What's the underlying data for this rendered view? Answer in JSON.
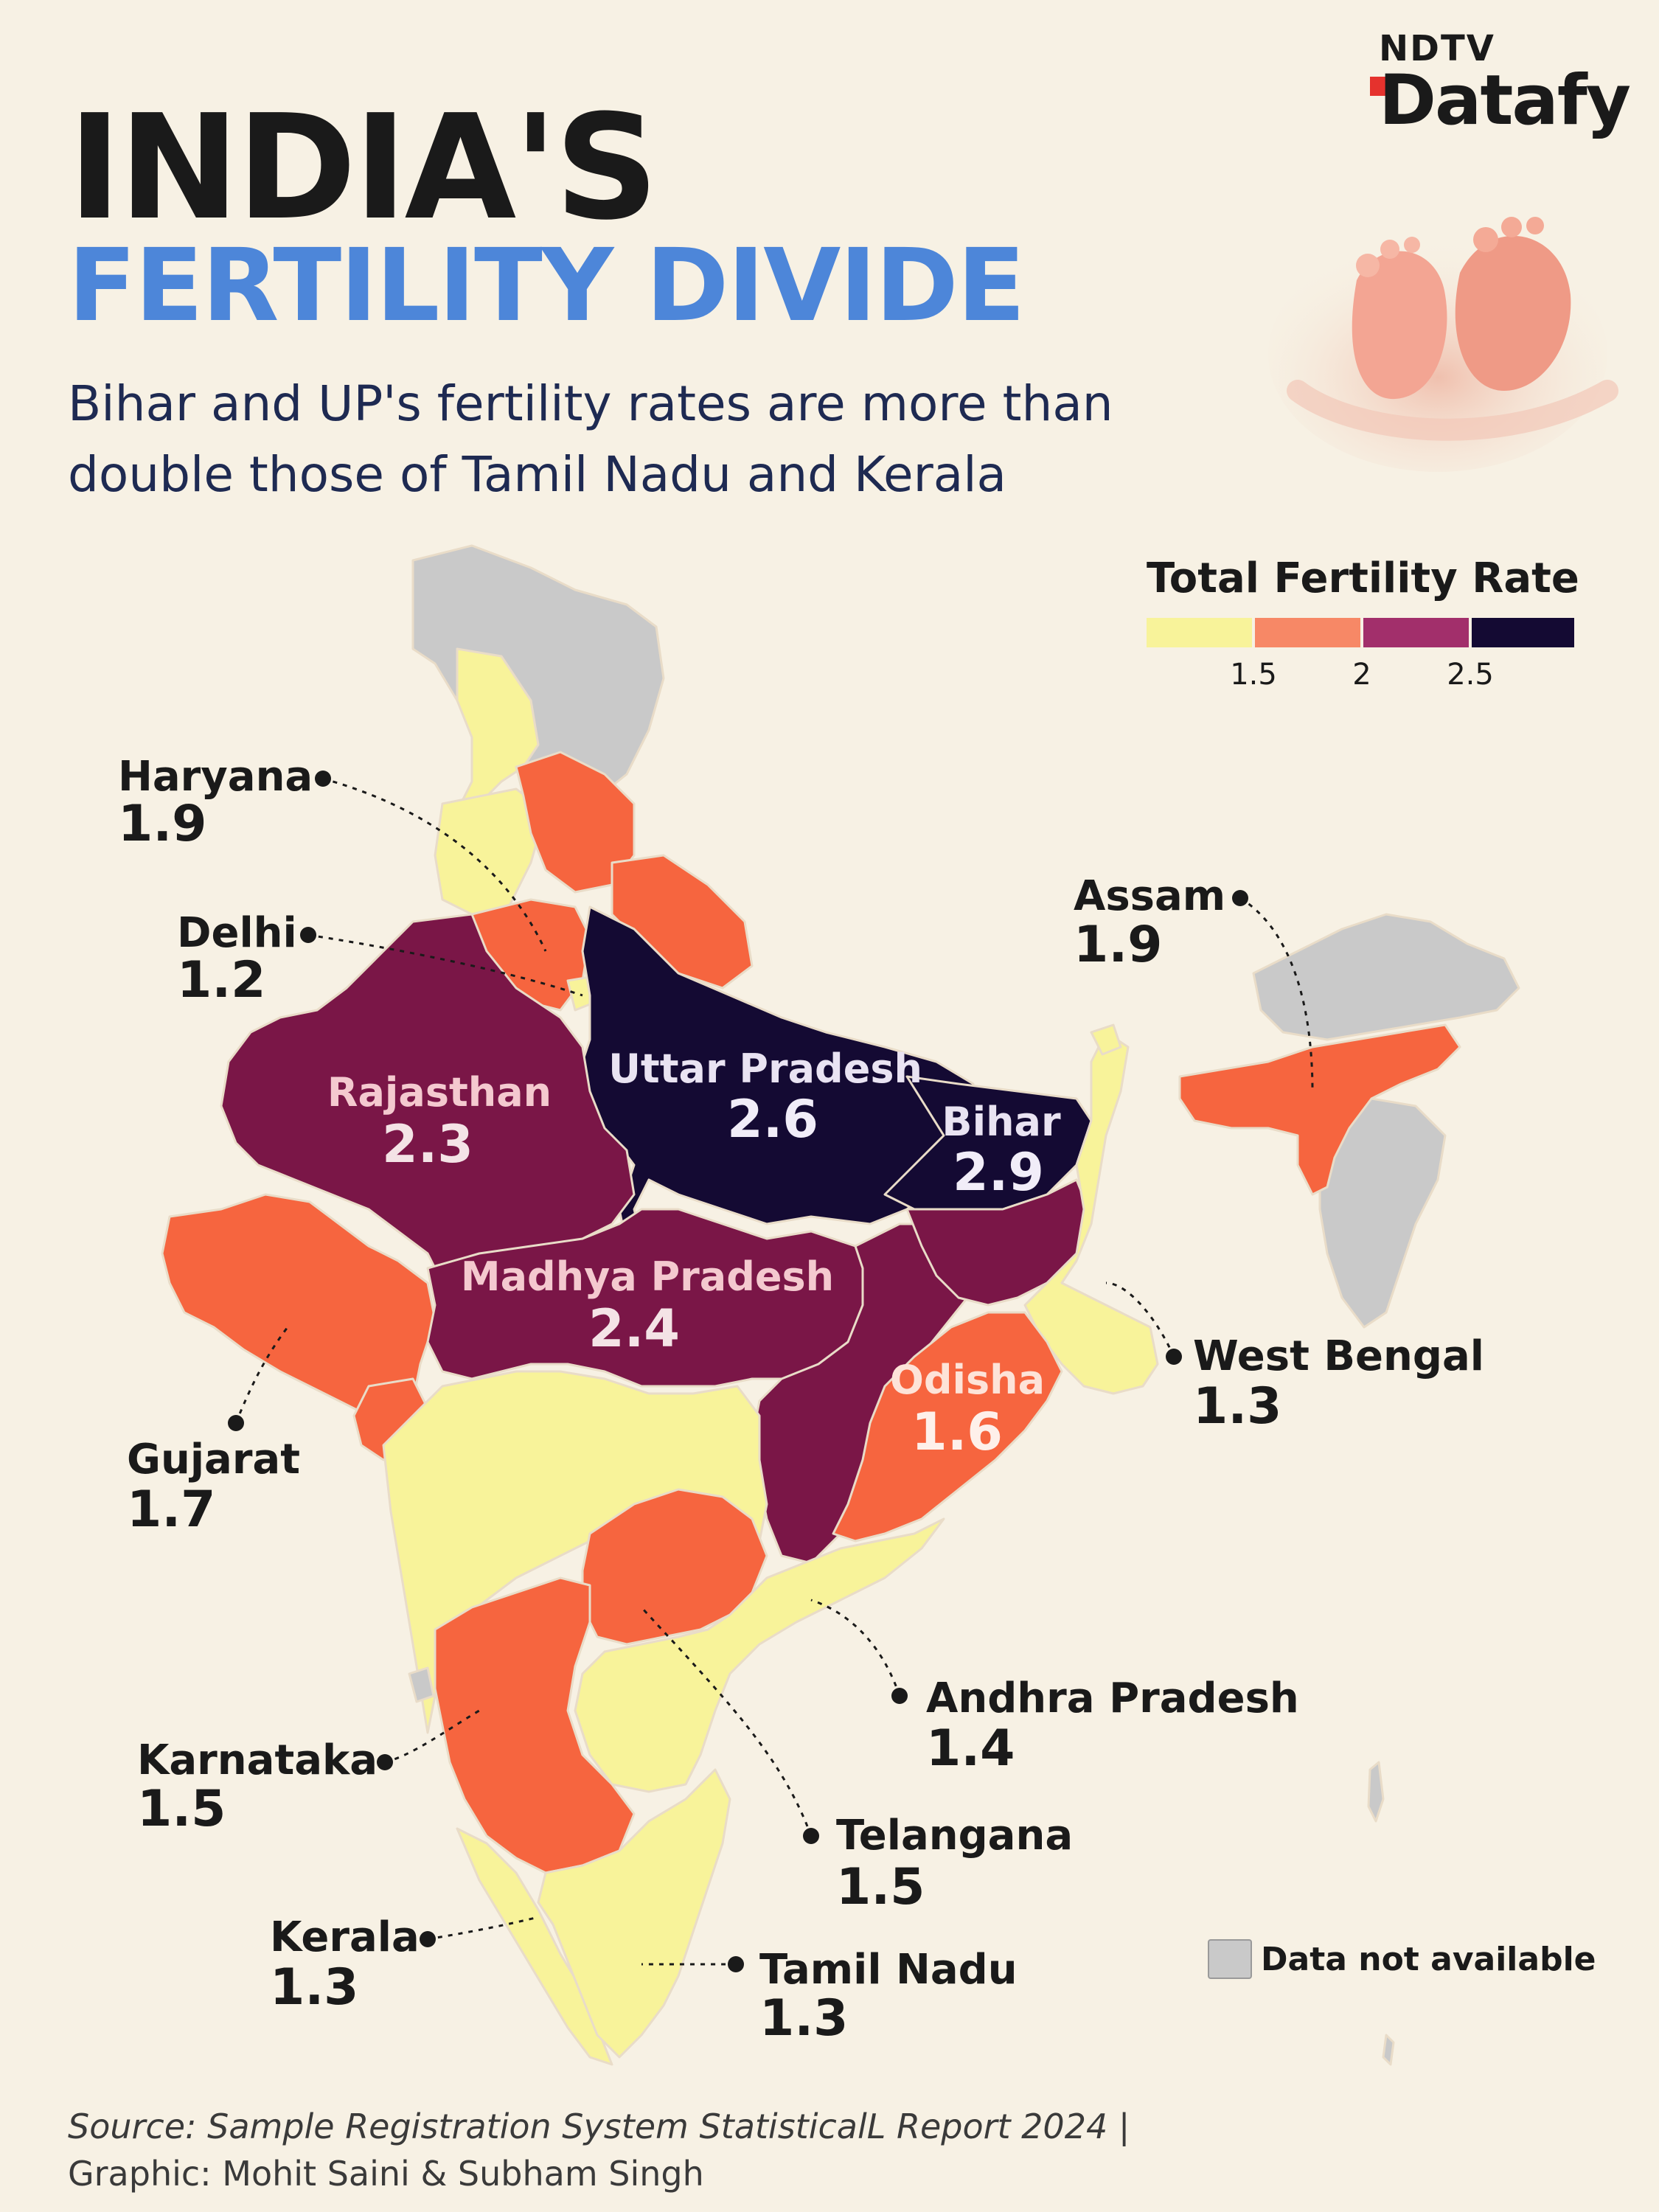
{
  "brand": {
    "top": "NDTV",
    "main": "Datafy"
  },
  "title": {
    "line1": "INDIA'S",
    "line2": "FERTILITY DIVIDE"
  },
  "subtitle": "Bihar and UP's fertility rates are more than double those of Tamil Nadu and Kerala",
  "legend": {
    "title": "Total Fertility Rate",
    "bins": [
      {
        "color": "#f8f39a"
      },
      {
        "color": "#f78866"
      },
      {
        "color": "#a22f6b"
      },
      {
        "color": "#140a33"
      }
    ],
    "ticks": [
      "1.5",
      "2",
      "2.5"
    ],
    "no_data_label": "Data not available",
    "no_data_color": "#c9c9c9"
  },
  "states": [
    {
      "name": "Haryana",
      "value": "1.9"
    },
    {
      "name": "Delhi",
      "value": "1.2"
    },
    {
      "name": "Rajasthan",
      "value": "2.3"
    },
    {
      "name": "Uttar Pradesh",
      "value": "2.6"
    },
    {
      "name": "Bihar",
      "value": "2.9"
    },
    {
      "name": "Assam",
      "value": "1.9"
    },
    {
      "name": "Madhya Pradesh",
      "value": "2.4"
    },
    {
      "name": "West Bengal",
      "value": "1.3"
    },
    {
      "name": "Odisha",
      "value": "1.6"
    },
    {
      "name": "Gujarat",
      "value": "1.7"
    },
    {
      "name": "Andhra Pradesh",
      "value": "1.4"
    },
    {
      "name": "Karnataka",
      "value": "1.5"
    },
    {
      "name": "Telangana",
      "value": "1.5"
    },
    {
      "name": "Kerala",
      "value": "1.3"
    },
    {
      "name": "Tamil Nadu",
      "value": "1.3"
    }
  ],
  "source": {
    "line1": "Source: Sample Registration System StatisticalL Report 2024 |",
    "line2": "Graphic: Mohit Saini & Subham Singh"
  }
}
